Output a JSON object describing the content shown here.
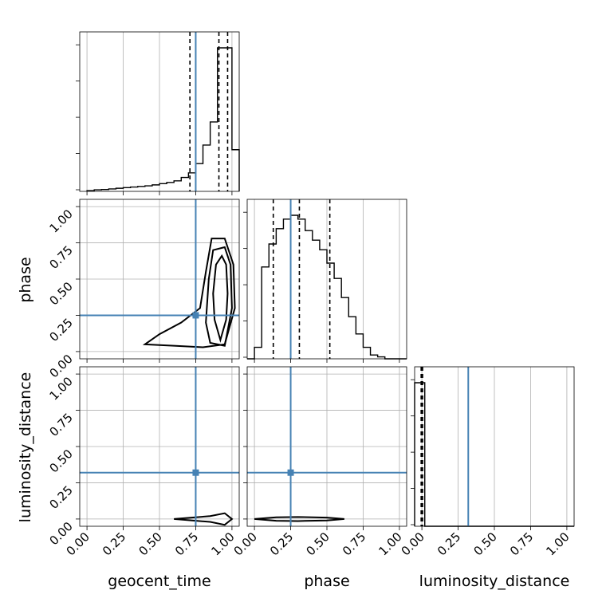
{
  "figure": {
    "axis_labels": {
      "geocent_time": "geocent_time",
      "phase": "phase",
      "luminosity_distance": "luminosity_distance"
    },
    "tick_labels": [
      "0.00",
      "0.25",
      "0.50",
      "0.75",
      "1.00"
    ],
    "truth_color": "#4682b4"
  },
  "chart_data": {
    "type": "corner",
    "parameters": [
      "geocent_time",
      "phase",
      "luminosity_distance"
    ],
    "axis_range": [
      -0.05,
      1.05
    ],
    "tick_values": [
      0.0,
      0.25,
      0.5,
      0.75,
      1.0
    ],
    "grid": true,
    "truths": {
      "geocent_time": 0.75,
      "phase": 0.25,
      "luminosity_distance": 0.32
    },
    "histograms": [
      {
        "parameter": "geocent_time",
        "bin_edges": [
          0.0,
          0.05,
          0.1,
          0.15,
          0.2,
          0.25,
          0.3,
          0.35,
          0.4,
          0.45,
          0.5,
          0.55,
          0.6,
          0.65,
          0.7,
          0.75,
          0.8,
          0.85,
          0.9,
          0.95,
          1.0,
          1.05
        ],
        "counts": [
          0.005,
          0.01,
          0.012,
          0.016,
          0.02,
          0.024,
          0.028,
          0.032,
          0.036,
          0.042,
          0.05,
          0.058,
          0.068,
          0.09,
          0.12,
          0.18,
          0.3,
          0.45,
          0.93,
          0.93,
          0.27
        ],
        "quantiles": [
          0.71,
          0.91,
          0.97
        ]
      },
      {
        "parameter": "phase",
        "bin_edges": [
          -0.05,
          0.0,
          0.05,
          0.1,
          0.15,
          0.2,
          0.25,
          0.3,
          0.35,
          0.4,
          0.45,
          0.5,
          0.55,
          0.6,
          0.65,
          0.7,
          0.75,
          0.8,
          0.85,
          0.9,
          0.95,
          1.0,
          1.05
        ],
        "counts": [
          0.0,
          0.06,
          0.48,
          0.6,
          0.68,
          0.73,
          0.75,
          0.73,
          0.67,
          0.62,
          0.57,
          0.5,
          0.42,
          0.32,
          0.22,
          0.13,
          0.06,
          0.02,
          0.01,
          0.0,
          0.0,
          0.0
        ],
        "quantiles": [
          0.13,
          0.31,
          0.52
        ]
      },
      {
        "parameter": "luminosity_distance",
        "bin_edges": [
          -0.05,
          0.0,
          0.02,
          1.05
        ],
        "counts": [
          1.0,
          1.0,
          0.0
        ],
        "quantiles": [
          -0.005,
          0.0,
          0.005
        ]
      }
    ],
    "pairs": [
      {
        "x": "geocent_time",
        "y": "phase",
        "contours": [
          [
            [
              0.92,
              0.08
            ],
            [
              0.96,
              0.22
            ],
            [
              0.97,
              0.4
            ],
            [
              0.96,
              0.6
            ],
            [
              0.93,
              0.66
            ],
            [
              0.89,
              0.6
            ],
            [
              0.87,
              0.4
            ],
            [
              0.88,
              0.22
            ]
          ],
          [
            [
              0.85,
              0.06
            ],
            [
              0.95,
              0.04
            ],
            [
              1.0,
              0.3
            ],
            [
              0.99,
              0.6
            ],
            [
              0.95,
              0.72
            ],
            [
              0.87,
              0.7
            ],
            [
              0.84,
              0.5
            ],
            [
              0.82,
              0.2
            ]
          ],
          [
            [
              0.4,
              0.05
            ],
            [
              0.6,
              0.04
            ],
            [
              0.8,
              0.03
            ],
            [
              0.95,
              0.05
            ],
            [
              1.02,
              0.3
            ],
            [
              1.01,
              0.6
            ],
            [
              0.95,
              0.78
            ],
            [
              0.86,
              0.78
            ],
            [
              0.82,
              0.55
            ],
            [
              0.78,
              0.3
            ],
            [
              0.65,
              0.2
            ],
            [
              0.5,
              0.12
            ]
          ]
        ]
      },
      {
        "x": "geocent_time",
        "y": "luminosity_distance",
        "contours": [
          [
            [
              0.6,
              0.0
            ],
            [
              0.85,
              0.02
            ],
            [
              0.95,
              0.04
            ],
            [
              1.0,
              0.0
            ],
            [
              0.95,
              -0.04
            ],
            [
              0.85,
              -0.02
            ]
          ]
        ]
      },
      {
        "x": "phase",
        "y": "luminosity_distance",
        "contours": [
          [
            [
              0.0,
              0.0
            ],
            [
              0.15,
              0.012
            ],
            [
              0.3,
              0.014
            ],
            [
              0.5,
              0.01
            ],
            [
              0.62,
              0.0
            ],
            [
              0.5,
              -0.01
            ],
            [
              0.3,
              -0.014
            ],
            [
              0.15,
              -0.012
            ]
          ]
        ]
      }
    ]
  }
}
